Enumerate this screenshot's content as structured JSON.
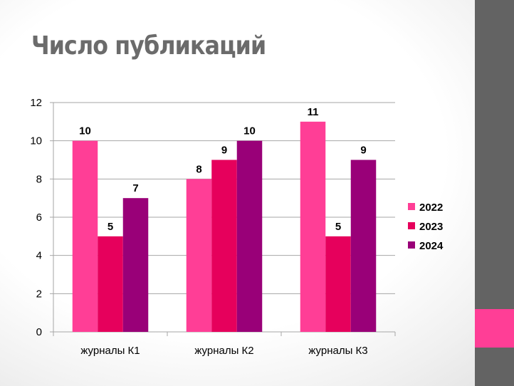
{
  "slide": {
    "title": "Число публикаций",
    "side_bar_color": "#636363",
    "side_accent_color": "#ff3e96"
  },
  "chart_data": {
    "type": "bar",
    "categories": [
      "журналы К1",
      "журналы К2",
      "журналы К3"
    ],
    "series": [
      {
        "name": "2022",
        "color": "#ff3e96",
        "values": [
          10,
          8,
          11
        ]
      },
      {
        "name": "2023",
        "color": "#e6005c",
        "values": [
          5,
          9,
          5
        ]
      },
      {
        "name": "2024",
        "color": "#990078",
        "values": [
          7,
          10,
          9
        ]
      }
    ],
    "ylim": [
      0,
      12
    ],
    "yticks": [
      0,
      2,
      4,
      6,
      8,
      10,
      12
    ],
    "grid": true,
    "legend": "right",
    "data_labels": true
  }
}
